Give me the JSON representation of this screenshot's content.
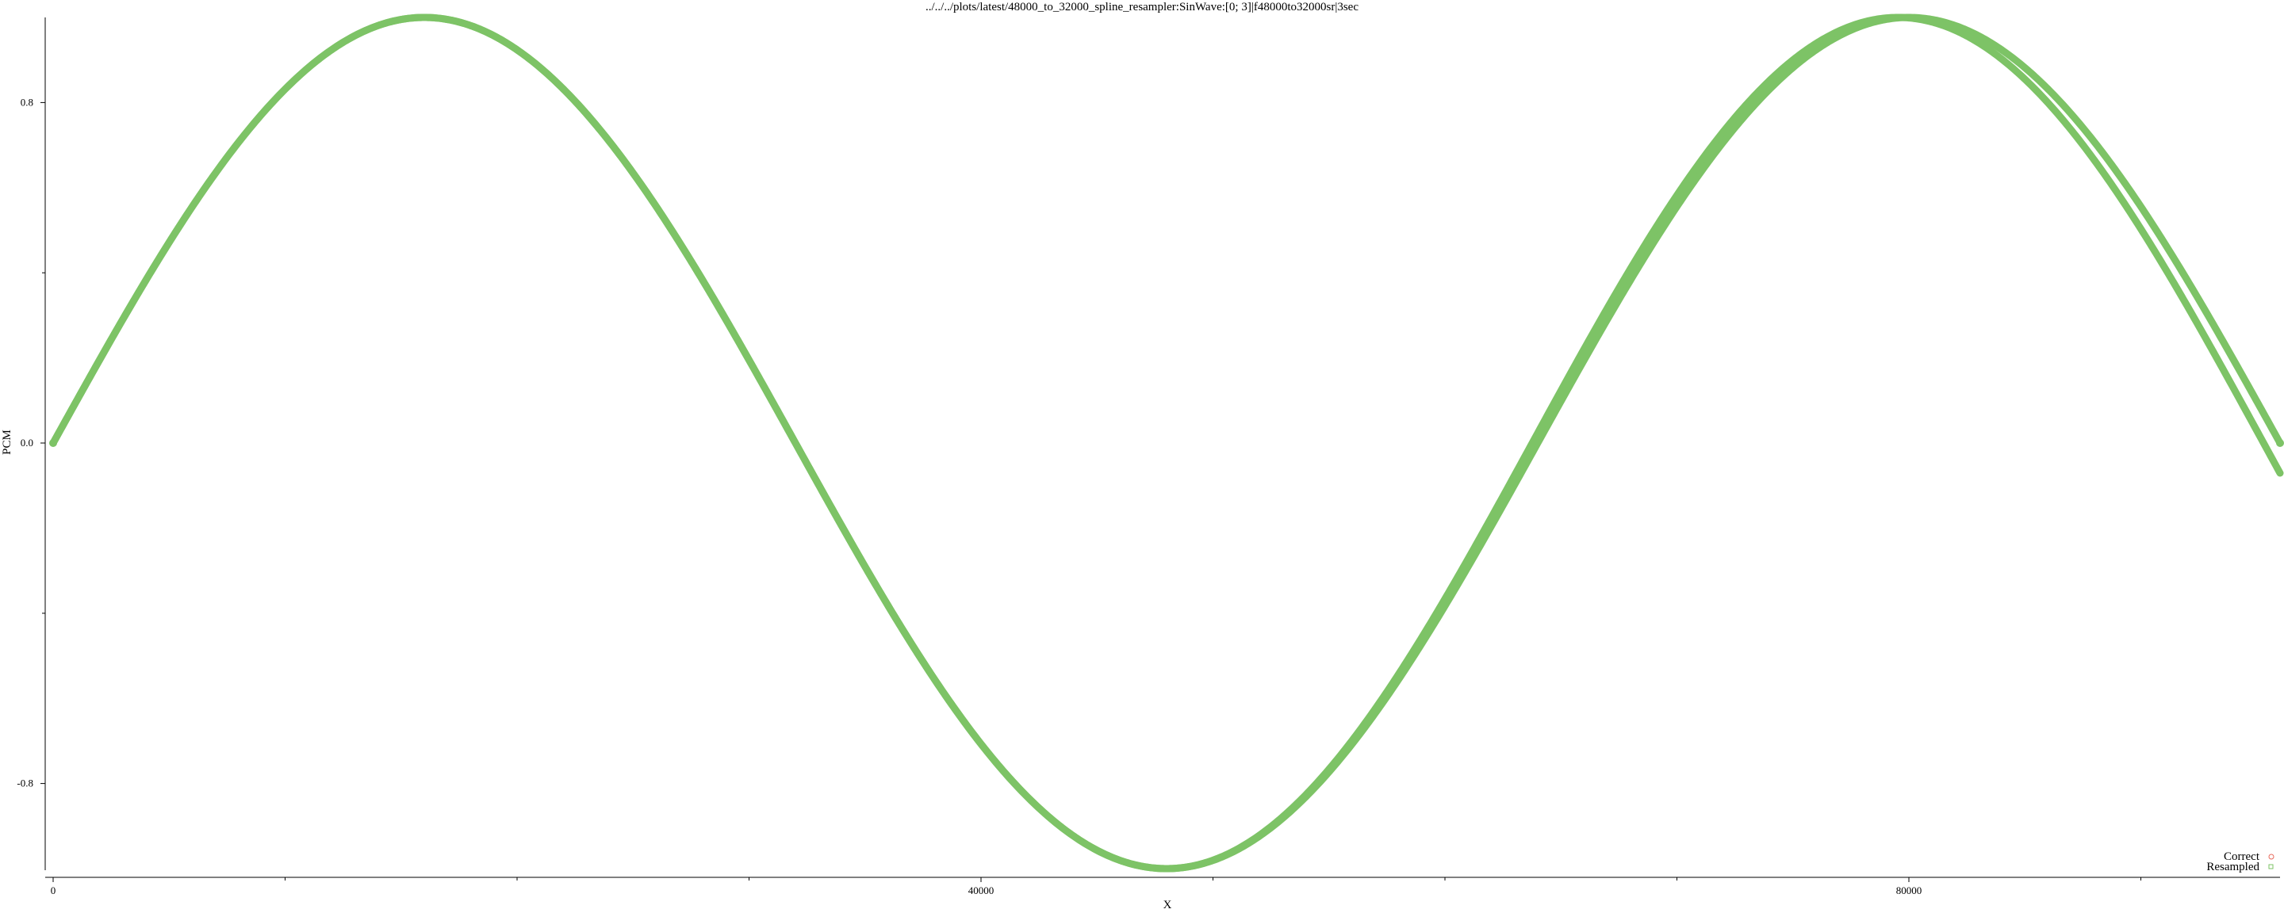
{
  "chart_data": {
    "type": "scatter",
    "title": "../../../plots/latest/48000_to_32000_spline_resampler:SinWave:[0; 3]|f48000to32000sr|3sec",
    "xlabel": "X",
    "ylabel": "PCM",
    "xlim": [
      0,
      96000
    ],
    "ylim": [
      -1.0,
      1.0
    ],
    "x_ticks": [
      0,
      40000,
      80000
    ],
    "x_tick_labels": [
      "0",
      "40000",
      "80000"
    ],
    "x_minor_ticks": [
      10000,
      20000,
      30000,
      50000,
      60000,
      70000,
      90000
    ],
    "y_ticks": [
      0.8,
      0.0,
      -0.8
    ],
    "y_tick_labels": [
      "0.8",
      "0.0",
      "-0.8"
    ],
    "y_minor_ticks": [
      0.4,
      -0.4
    ],
    "grid": false,
    "legend_position": "bottom-right",
    "series": [
      {
        "name": "Correct",
        "color": "#e8695c",
        "marker": "circle",
        "description_points": "sine wave, amplitude 1.0, period 64000 samples",
        "amplitude": 1.0,
        "period": 64000,
        "x_range": [
          0,
          96000
        ]
      },
      {
        "name": "Resampled",
        "color": "#7dc366",
        "marker": "square",
        "amplitude": 1.0,
        "period": 64000,
        "x_range": [
          0,
          96000
        ]
      }
    ]
  }
}
